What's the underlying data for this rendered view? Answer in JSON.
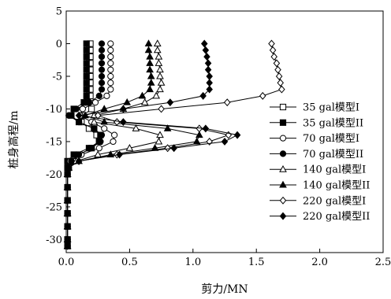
{
  "chart_data": {
    "type": "line",
    "xlabel": "剪力/MN",
    "ylabel": "桩身高程/m",
    "xlim": [
      0,
      2.5
    ],
    "ylim": [
      -32,
      5
    ],
    "x_ticks": [
      "0.0",
      "0.5",
      "1.0",
      "1.5",
      "2.0",
      "2.5"
    ],
    "y_ticks": [
      "5",
      "0",
      "-5",
      "-10",
      "-15",
      "-20",
      "-25",
      "-30"
    ],
    "legend_position": "right",
    "series": [
      {
        "name": "35 gal模型I",
        "marker": "square",
        "fill": "open",
        "points": [
          [
            0.19,
            0
          ],
          [
            0.19,
            -1
          ],
          [
            0.19,
            -2
          ],
          [
            0.19,
            -3
          ],
          [
            0.19,
            -4
          ],
          [
            0.19,
            -5
          ],
          [
            0.19,
            -6
          ],
          [
            0.19,
            -7
          ],
          [
            0.19,
            -8
          ],
          [
            0.17,
            -9
          ],
          [
            0.2,
            -10
          ],
          [
            0.13,
            -11
          ],
          [
            0.12,
            -12
          ],
          [
            0.18,
            -13
          ],
          [
            0.24,
            -14
          ],
          [
            0.26,
            -15
          ],
          [
            0.2,
            -16
          ],
          [
            0.1,
            -17
          ],
          [
            0.05,
            -18
          ],
          [
            0.02,
            -19
          ],
          [
            0.01,
            -20
          ],
          [
            0.01,
            -22
          ],
          [
            0.01,
            -24
          ],
          [
            0.01,
            -26
          ],
          [
            0.01,
            -28
          ],
          [
            0.01,
            -30
          ],
          [
            0.01,
            -31
          ]
        ]
      },
      {
        "name": "35 gal模型II",
        "marker": "square",
        "fill": "filled",
        "points": [
          [
            0.16,
            0
          ],
          [
            0.16,
            -1
          ],
          [
            0.16,
            -2
          ],
          [
            0.16,
            -3
          ],
          [
            0.16,
            -4
          ],
          [
            0.16,
            -5
          ],
          [
            0.16,
            -6
          ],
          [
            0.16,
            -7
          ],
          [
            0.16,
            -8
          ],
          [
            0.14,
            -9
          ],
          [
            0.06,
            -10
          ],
          [
            0.04,
            -11
          ],
          [
            0.1,
            -12
          ],
          [
            0.22,
            -13
          ],
          [
            0.27,
            -14
          ],
          [
            0.26,
            -15
          ],
          [
            0.18,
            -16
          ],
          [
            0.06,
            -17
          ],
          [
            0.01,
            -18
          ],
          [
            0.01,
            -19
          ],
          [
            0.01,
            -20
          ],
          [
            0.01,
            -22
          ],
          [
            0.01,
            -24
          ],
          [
            0.01,
            -26
          ],
          [
            0.01,
            -28
          ],
          [
            0.01,
            -30
          ],
          [
            0.01,
            -31
          ]
        ]
      },
      {
        "name": "70 gal模型I",
        "marker": "circle",
        "fill": "open",
        "points": [
          [
            0.35,
            0
          ],
          [
            0.35,
            -1
          ],
          [
            0.35,
            -2
          ],
          [
            0.35,
            -3
          ],
          [
            0.35,
            -4
          ],
          [
            0.35,
            -5
          ],
          [
            0.35,
            -6
          ],
          [
            0.35,
            -7
          ],
          [
            0.32,
            -8
          ],
          [
            0.23,
            -9
          ],
          [
            0.13,
            -10
          ],
          [
            0.11,
            -11
          ],
          [
            0.2,
            -12
          ],
          [
            0.3,
            -13
          ],
          [
            0.38,
            -14
          ],
          [
            0.37,
            -15
          ],
          [
            0.26,
            -16
          ],
          [
            0.12,
            -17
          ],
          [
            0.03,
            -18
          ],
          [
            0.01,
            -19
          ],
          [
            0.01,
            -20
          ],
          [
            0.01,
            -22
          ],
          [
            0.01,
            -24
          ],
          [
            0.01,
            -26
          ],
          [
            0.01,
            -28
          ],
          [
            0.01,
            -30
          ],
          [
            0.01,
            -31
          ]
        ]
      },
      {
        "name": "70 gal模型II",
        "marker": "circle",
        "fill": "filled",
        "points": [
          [
            0.28,
            0
          ],
          [
            0.28,
            -1
          ],
          [
            0.28,
            -2
          ],
          [
            0.28,
            -3
          ],
          [
            0.28,
            -4
          ],
          [
            0.28,
            -5
          ],
          [
            0.28,
            -6
          ],
          [
            0.28,
            -7
          ],
          [
            0.26,
            -8
          ],
          [
            0.18,
            -9
          ],
          [
            0.08,
            -10
          ],
          [
            0.02,
            -11
          ],
          [
            0.1,
            -12
          ],
          [
            0.22,
            -13
          ],
          [
            0.28,
            -14
          ],
          [
            0.27,
            -15
          ],
          [
            0.2,
            -16
          ],
          [
            0.1,
            -17
          ],
          [
            0.04,
            -18
          ],
          [
            0.01,
            -19
          ],
          [
            0.01,
            -20
          ],
          [
            0.01,
            -22
          ],
          [
            0.01,
            -24
          ],
          [
            0.01,
            -26
          ],
          [
            0.01,
            -28
          ],
          [
            0.01,
            -30
          ],
          [
            0.01,
            -31
          ]
        ]
      },
      {
        "name": "140 gal模型I",
        "marker": "triangle",
        "fill": "open",
        "points": [
          [
            0.72,
            0
          ],
          [
            0.72,
            -1
          ],
          [
            0.73,
            -2
          ],
          [
            0.73,
            -3
          ],
          [
            0.74,
            -4
          ],
          [
            0.74,
            -5
          ],
          [
            0.75,
            -6
          ],
          [
            0.74,
            -7
          ],
          [
            0.71,
            -8
          ],
          [
            0.62,
            -9
          ],
          [
            0.45,
            -10
          ],
          [
            0.22,
            -11
          ],
          [
            0.22,
            -12
          ],
          [
            0.55,
            -13
          ],
          [
            0.74,
            -14
          ],
          [
            0.73,
            -15
          ],
          [
            0.5,
            -16
          ],
          [
            0.25,
            -17
          ],
          [
            0.08,
            -18
          ],
          [
            0.02,
            -19
          ],
          [
            0.01,
            -20
          ],
          [
            0.01,
            -22
          ],
          [
            0.01,
            -24
          ],
          [
            0.01,
            -26
          ],
          [
            0.01,
            -28
          ],
          [
            0.01,
            -30
          ],
          [
            0.01,
            -31
          ]
        ]
      },
      {
        "name": "140 gal模型II",
        "marker": "triangle",
        "fill": "filled",
        "points": [
          [
            0.65,
            0
          ],
          [
            0.65,
            -1
          ],
          [
            0.66,
            -2
          ],
          [
            0.66,
            -3
          ],
          [
            0.66,
            -4
          ],
          [
            0.67,
            -5
          ],
          [
            0.67,
            -6
          ],
          [
            0.66,
            -7
          ],
          [
            0.6,
            -8
          ],
          [
            0.48,
            -9
          ],
          [
            0.3,
            -10
          ],
          [
            0.15,
            -11
          ],
          [
            0.3,
            -12
          ],
          [
            0.8,
            -13
          ],
          [
            1.05,
            -14
          ],
          [
            1.03,
            -15
          ],
          [
            0.7,
            -16
          ],
          [
            0.35,
            -17
          ],
          [
            0.1,
            -18
          ],
          [
            0.02,
            -19
          ],
          [
            0.01,
            -20
          ],
          [
            0.01,
            -22
          ],
          [
            0.01,
            -24
          ],
          [
            0.01,
            -26
          ],
          [
            0.01,
            -28
          ],
          [
            0.01,
            -30
          ],
          [
            0.01,
            -31
          ]
        ]
      },
      {
        "name": "220 gal模型I",
        "marker": "diamond",
        "fill": "open",
        "points": [
          [
            1.62,
            0
          ],
          [
            1.63,
            -1
          ],
          [
            1.64,
            -2
          ],
          [
            1.66,
            -3
          ],
          [
            1.67,
            -4
          ],
          [
            1.68,
            -5
          ],
          [
            1.69,
            -6
          ],
          [
            1.7,
            -7
          ],
          [
            1.55,
            -8
          ],
          [
            1.27,
            -9
          ],
          [
            0.75,
            -10
          ],
          [
            0.25,
            -11
          ],
          [
            0.4,
            -12
          ],
          [
            1.05,
            -13
          ],
          [
            1.28,
            -14
          ],
          [
            1.13,
            -15
          ],
          [
            0.8,
            -16
          ],
          [
            0.4,
            -17
          ],
          [
            0.1,
            -18
          ],
          [
            0.02,
            -19
          ],
          [
            0.01,
            -20
          ],
          [
            0.01,
            -22
          ],
          [
            0.01,
            -24
          ],
          [
            0.01,
            -26
          ],
          [
            0.01,
            -28
          ],
          [
            0.01,
            -30
          ],
          [
            0.01,
            -31
          ]
        ]
      },
      {
        "name": "220 gal模型II",
        "marker": "diamond",
        "fill": "filled",
        "points": [
          [
            1.09,
            0
          ],
          [
            1.1,
            -1
          ],
          [
            1.11,
            -2
          ],
          [
            1.12,
            -3
          ],
          [
            1.12,
            -4
          ],
          [
            1.13,
            -5
          ],
          [
            1.13,
            -6
          ],
          [
            1.13,
            -7
          ],
          [
            1.08,
            -8
          ],
          [
            0.82,
            -9
          ],
          [
            0.45,
            -10
          ],
          [
            0.1,
            -11
          ],
          [
            0.45,
            -12
          ],
          [
            1.1,
            -13
          ],
          [
            1.35,
            -14
          ],
          [
            1.25,
            -15
          ],
          [
            0.85,
            -16
          ],
          [
            0.42,
            -17
          ],
          [
            0.1,
            -18
          ],
          [
            0.02,
            -19
          ],
          [
            0.01,
            -20
          ],
          [
            0.01,
            -22
          ],
          [
            0.01,
            -24
          ],
          [
            0.01,
            -26
          ],
          [
            0.01,
            -28
          ],
          [
            0.01,
            -30
          ],
          [
            0.01,
            -31
          ]
        ]
      }
    ]
  }
}
